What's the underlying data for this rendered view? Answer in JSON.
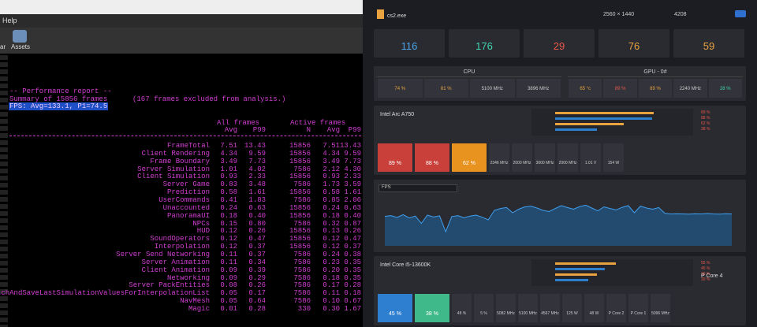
{
  "left": {
    "menu": "Help",
    "toolbar": [
      "ar",
      "Assets"
    ],
    "report": {
      "heading": "-- Performance report --",
      "summary": "Summary of 15856 frames",
      "excluded": "(167 frames excluded from analysis.)",
      "fps": "FPS: Avg=133.1, P1=74.5",
      "groups": [
        "All frames",
        "Active frames"
      ],
      "columns": [
        "Avg",
        "P99",
        "N",
        "Avg",
        "P99"
      ],
      "rows": [
        [
          "FrameTotal",
          "7.51",
          "13.43",
          "15856",
          "7.51",
          "13.43"
        ],
        [
          "Client Rendering",
          "4.34",
          "9.59",
          "15856",
          "4.34",
          "9.59"
        ],
        [
          "Frame Boundary",
          "3.49",
          "7.73",
          "15856",
          "3.49",
          "7.73"
        ],
        [
          "Server Simulation",
          "1.01",
          "4.02",
          "7586",
          "2.12",
          "4.30"
        ],
        [
          "Client Simulation",
          "0.93",
          "2.33",
          "15856",
          "0.93",
          "2.33"
        ],
        [
          "Server Game",
          "0.83",
          "3.48",
          "7586",
          "1.73",
          "3.59"
        ],
        [
          "Prediction",
          "0.58",
          "1.61",
          "15856",
          "0.58",
          "1.61"
        ],
        [
          "UserCommands",
          "0.41",
          "1.83",
          "7586",
          "0.85",
          "2.06"
        ],
        [
          "Unaccounted",
          "0.24",
          "0.63",
          "15856",
          "0.24",
          "0.63"
        ],
        [
          "PanoramaUI",
          "0.18",
          "0.40",
          "15856",
          "0.18",
          "0.40"
        ],
        [
          "NPCs",
          "0.15",
          "0.80",
          "7586",
          "0.32",
          "0.87"
        ],
        [
          "HUD",
          "0.12",
          "0.26",
          "15856",
          "0.13",
          "0.26"
        ],
        [
          "SoundOperators",
          "0.12",
          "0.47",
          "15856",
          "0.12",
          "0.47"
        ],
        [
          "Interpolation",
          "0.12",
          "0.37",
          "15856",
          "0.12",
          "0.37"
        ],
        [
          "Server Send Networking",
          "0.11",
          "0.37",
          "7586",
          "0.24",
          "0.38"
        ],
        [
          "Server Animation",
          "0.11",
          "0.34",
          "7586",
          "0.23",
          "0.35"
        ],
        [
          "Client Animation",
          "0.09",
          "0.39",
          "7586",
          "0.20",
          "0.35"
        ],
        [
          "Networking",
          "0.09",
          "0.29",
          "7586",
          "0.18",
          "0.35"
        ],
        [
          "Server PackEntities",
          "0.08",
          "0.26",
          "7586",
          "0.17",
          "0.28"
        ],
        [
          "LatchAndSaveLastSimulationValuesForInterpolationList",
          "0.05",
          "0.17",
          "7586",
          "0.11",
          "0.18"
        ],
        [
          "NavMesh",
          "0.05",
          "0.64",
          "7586",
          "0.10",
          "0.67"
        ],
        [
          "Magic",
          "0.01",
          "0.28",
          "330",
          "0.30",
          "1.67"
        ]
      ]
    }
  },
  "right": {
    "app": "cs2.exe",
    "resolution": "2560 × 1440",
    "id": "4208",
    "stats": [
      {
        "value": "116",
        "color": "#4aa3e8"
      },
      {
        "value": "176",
        "color": "#3fd6b0"
      },
      {
        "value": "29",
        "color": "#e8574a"
      },
      {
        "value": "76",
        "color": "#e8a23f"
      },
      {
        "value": "59",
        "color": "#e8a23f"
      }
    ],
    "cpu": {
      "label": "CPU",
      "cells": [
        {
          "value": "74 %",
          "color": "#e8a23f"
        },
        {
          "value": "81 %",
          "color": "#e8a23f"
        },
        {
          "value": "5100 MHz",
          "color": "#cccccc"
        },
        {
          "value": "3896 MHz",
          "color": "#cccccc"
        }
      ]
    },
    "gpu": {
      "label": "GPU - 0#",
      "cells": [
        {
          "value": "65 °c",
          "color": "#e8a23f"
        },
        {
          "value": "89 %",
          "color": "#e8574a"
        },
        {
          "value": "89 %",
          "color": "#e8a23f"
        },
        {
          "value": "2240 MHz",
          "color": "#cccccc"
        },
        {
          "value": "28 %",
          "color": "#3fd6b0"
        }
      ]
    },
    "gpu_panel": {
      "name": "Intel Arc A750",
      "tiles": [
        {
          "value": "89 %",
          "color": "#c9403a"
        },
        {
          "value": "88 %",
          "color": "#c9403a"
        },
        {
          "value": "62 %",
          "color": "#e8931f"
        }
      ],
      "small": [
        "2346 MHz",
        "2000 MHz",
        "3000 MHz",
        "2000 MHz",
        "1.01 V",
        "154 W"
      ],
      "bars": [
        89,
        88,
        62,
        38
      ],
      "value_labels": [
        "89 %",
        "88 %",
        "62 %",
        "38 %"
      ]
    },
    "chart": {
      "selector": "FPS",
      "ylim": [
        0,
        200
      ],
      "values": [
        125,
        128,
        120,
        132,
        118,
        126,
        95,
        130,
        122,
        127,
        60,
        124,
        128,
        119,
        126,
        130,
        121,
        110,
        150,
        158,
        162,
        140,
        155,
        165,
        168,
        160,
        150,
        145,
        158,
        170,
        162,
        155,
        166,
        172,
        160,
        148,
        165,
        158,
        152,
        163,
        170,
        140,
        168,
        160,
        155,
        162,
        138,
        135,
        136,
        135,
        134,
        136,
        135,
        137,
        135,
        134,
        136,
        135
      ]
    },
    "cpu_panel": {
      "name": "Intel Core i5-13600K",
      "core": "P Core 4",
      "tiles": [
        {
          "value": "45 %",
          "color": "#2f7fd0"
        },
        {
          "value": "38 %",
          "color": "#3fb98a"
        }
      ],
      "small": [
        "48 %",
        "5 %",
        "5082 MHz",
        "5100 MHz",
        "4567 MHz",
        "125 W",
        "48 W",
        "P Core 2",
        "P Core 1",
        "5096 MHz"
      ],
      "bars": [
        55,
        45,
        38,
        30
      ],
      "value_labels": [
        "55 %",
        "45 %",
        "38 %",
        "30 %"
      ]
    }
  }
}
